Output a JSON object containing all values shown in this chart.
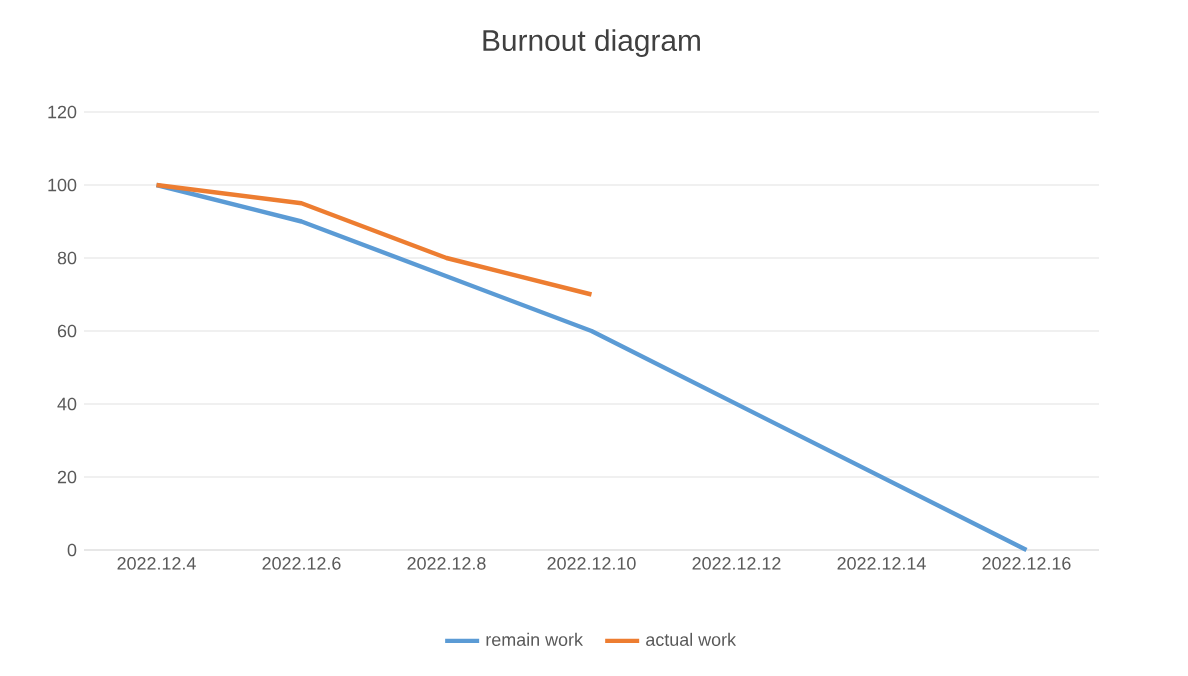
{
  "chart_data": {
    "type": "line",
    "title": "Burnout diagram",
    "categories": [
      "2022.12.4",
      "2022.12.6",
      "2022.12.8",
      "2022.12.10",
      "2022.12.12",
      "2022.12.14",
      "2022.12.16"
    ],
    "series": [
      {
        "name": "remain work",
        "color": "#5b9bd5",
        "values": [
          100,
          90,
          75,
          60,
          40,
          20,
          0
        ]
      },
      {
        "name": "actual work",
        "color": "#ed7d31",
        "values": [
          100,
          95,
          80,
          70,
          null,
          null,
          null
        ]
      }
    ],
    "ylim": [
      0,
      120
    ],
    "yticks": [
      0,
      20,
      40,
      60,
      80,
      100,
      120
    ],
    "grid": "y",
    "legend": "bottom"
  }
}
